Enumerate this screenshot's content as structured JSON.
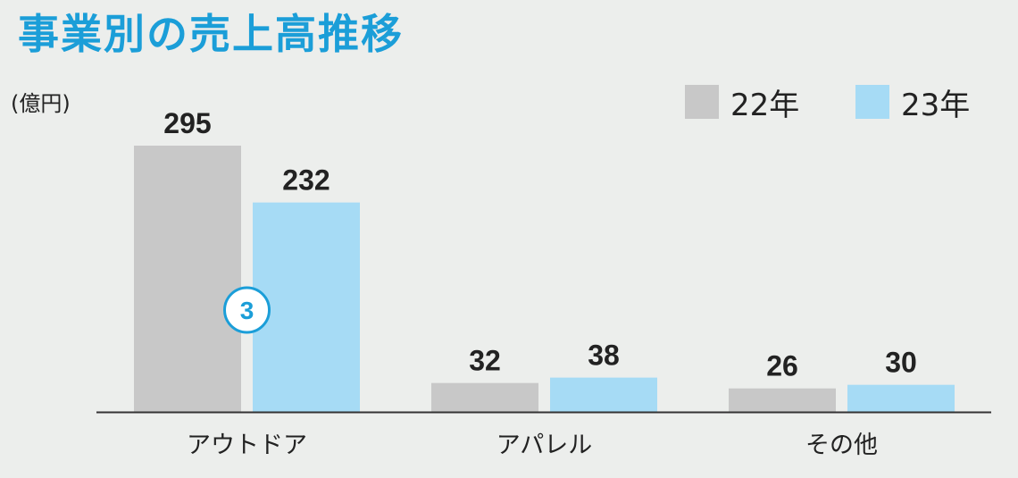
{
  "colors": {
    "title": "#1b9ed8",
    "series_22": "#c8c8c8",
    "series_23": "#a6dbf5",
    "axis": "#333333",
    "marker": "#1b9ed8"
  },
  "chart_data": {
    "type": "bar",
    "title": "事業別の売上高推移",
    "ylabel": "(億円)",
    "xlabel": "",
    "categories": [
      "アウトドア",
      "アパレル",
      "その他"
    ],
    "series": [
      {
        "name": "22年",
        "values": [
          295,
          32,
          26
        ]
      },
      {
        "name": "23年",
        "values": [
          232,
          38,
          30
        ]
      }
    ],
    "ylim": [
      0,
      295
    ],
    "grid": false,
    "legend": "top-right",
    "annotations": [
      {
        "text": "3",
        "category": "アウトドア",
        "style": "circled-number"
      }
    ]
  }
}
